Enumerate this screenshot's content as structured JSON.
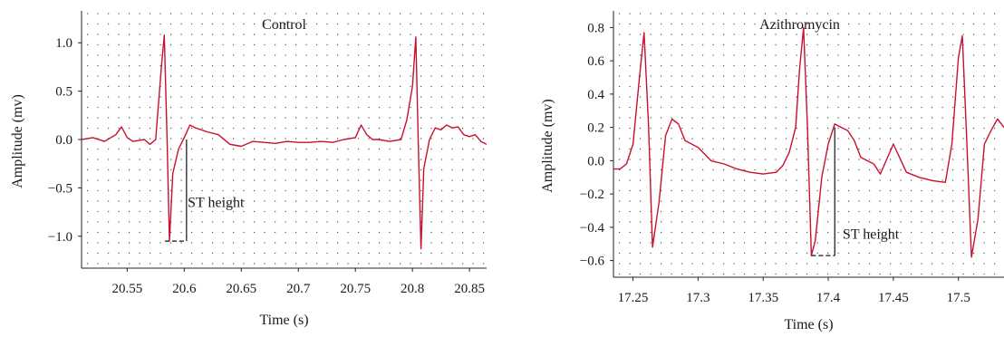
{
  "chart_data": [
    {
      "type": "line",
      "title": "Control",
      "xlabel": "Time (s)",
      "ylabel": "Amplitude (mv)",
      "xlim": [
        20.51,
        20.865
      ],
      "ylim": [
        -1.33,
        1.33
      ],
      "xticks": [
        20.55,
        20.6,
        20.65,
        20.7,
        20.75,
        20.8,
        20.85
      ],
      "xtick_labels": [
        "20.55",
        "20.6",
        "20.65",
        "20.7",
        "20.75",
        "20.8",
        "20.85"
      ],
      "yticks": [
        1.0,
        0.5,
        0.0,
        -0.5,
        -1.0
      ],
      "ytick_labels": [
        "1.0",
        "0.5",
        "0.0",
        "−0.5",
        "−1.0"
      ],
      "grid": "dotted",
      "series": [
        {
          "color": "#c8102e",
          "x": [
            20.51,
            20.52,
            20.53,
            20.54,
            20.545,
            20.55,
            20.555,
            20.56,
            20.565,
            20.57,
            20.575,
            20.578,
            20.58,
            20.5825,
            20.585,
            20.587,
            20.59,
            20.595,
            20.6,
            20.605,
            20.61,
            20.62,
            20.63,
            20.64,
            20.65,
            20.66,
            20.67,
            20.68,
            20.69,
            20.7,
            20.71,
            20.72,
            20.73,
            20.74,
            20.75,
            20.755,
            20.76,
            20.765,
            20.77,
            20.78,
            20.79,
            20.795,
            20.8,
            20.803,
            20.805,
            20.8075,
            20.81,
            20.815,
            20.82,
            20.825,
            20.83,
            20.835,
            20.84,
            20.845,
            20.85,
            20.855,
            20.86,
            20.865
          ],
          "y": [
            0.0,
            0.02,
            -0.02,
            0.05,
            0.13,
            0.02,
            -0.02,
            -0.01,
            0.0,
            -0.05,
            0.0,
            0.45,
            0.75,
            1.08,
            0.0,
            -1.05,
            -0.35,
            -0.1,
            0.02,
            0.15,
            0.12,
            0.08,
            0.05,
            -0.05,
            -0.07,
            -0.02,
            -0.03,
            -0.04,
            -0.02,
            -0.03,
            -0.03,
            -0.02,
            -0.03,
            0.0,
            0.02,
            0.15,
            0.05,
            0.0,
            0.0,
            -0.02,
            0.0,
            0.2,
            0.55,
            1.06,
            0.0,
            -1.13,
            -0.3,
            0.0,
            0.12,
            0.1,
            0.15,
            0.12,
            0.13,
            0.05,
            0.03,
            0.05,
            -0.02,
            -0.05
          ]
        }
      ],
      "annotations": [
        {
          "text": "ST height",
          "x": 20.603,
          "y": -0.7
        }
      ],
      "st_bracket": {
        "x1": 20.583,
        "x2": 20.602,
        "y_bottom": -1.05,
        "y_top": 0.0
      }
    },
    {
      "type": "line",
      "title": "Azithromycin",
      "xlabel": "Time (s)",
      "ylabel": "Amplitude (mv)",
      "xlim": [
        17.235,
        17.535
      ],
      "ylim": [
        -0.7,
        0.9
      ],
      "xticks": [
        17.25,
        17.3,
        17.35,
        17.4,
        17.45,
        17.5
      ],
      "xtick_labels": [
        "17.25",
        "17.3",
        "17.35",
        "17.4",
        "17.45",
        "17.5"
      ],
      "yticks": [
        0.8,
        0.6,
        0.4,
        0.2,
        0.0,
        -0.2,
        -0.4,
        -0.6
      ],
      "ytick_labels": [
        "0.8",
        "0.6",
        "0.4",
        "0.2",
        "0.0",
        "−0.2",
        "−0.4",
        "−0.6"
      ],
      "grid": "dotted",
      "series": [
        {
          "color": "#c8102e",
          "x": [
            17.235,
            17.24,
            17.245,
            17.25,
            17.255,
            17.2585,
            17.262,
            17.265,
            17.27,
            17.275,
            17.28,
            17.285,
            17.29,
            17.3,
            17.31,
            17.32,
            17.33,
            17.34,
            17.35,
            17.36,
            17.365,
            17.37,
            17.375,
            17.378,
            17.381,
            17.384,
            17.387,
            17.39,
            17.395,
            17.4,
            17.405,
            17.41,
            17.415,
            17.42,
            17.425,
            17.43,
            17.435,
            17.44,
            17.45,
            17.46,
            17.47,
            17.48,
            17.49,
            17.495,
            17.5,
            17.503,
            17.506,
            17.51,
            17.515,
            17.52,
            17.525,
            17.53,
            17.535
          ],
          "y": [
            -0.05,
            -0.05,
            -0.02,
            0.1,
            0.5,
            0.77,
            0.2,
            -0.52,
            -0.25,
            0.15,
            0.25,
            0.22,
            0.12,
            0.08,
            0.0,
            -0.02,
            -0.05,
            -0.07,
            -0.08,
            -0.07,
            -0.03,
            0.05,
            0.2,
            0.55,
            0.8,
            0.2,
            -0.57,
            -0.48,
            -0.1,
            0.1,
            0.22,
            0.2,
            0.18,
            0.12,
            0.02,
            0.0,
            -0.02,
            -0.08,
            0.1,
            -0.07,
            -0.1,
            -0.12,
            -0.13,
            0.1,
            0.62,
            0.75,
            0.2,
            -0.58,
            -0.35,
            0.1,
            0.18,
            0.25,
            0.2
          ]
        }
      ],
      "annotations": [
        {
          "text": "ST height",
          "x": 17.411,
          "y": -0.47
        }
      ],
      "st_bracket": {
        "x1": 17.387,
        "x2": 17.405,
        "y_bottom": -0.57,
        "y_top": 0.2
      }
    }
  ]
}
